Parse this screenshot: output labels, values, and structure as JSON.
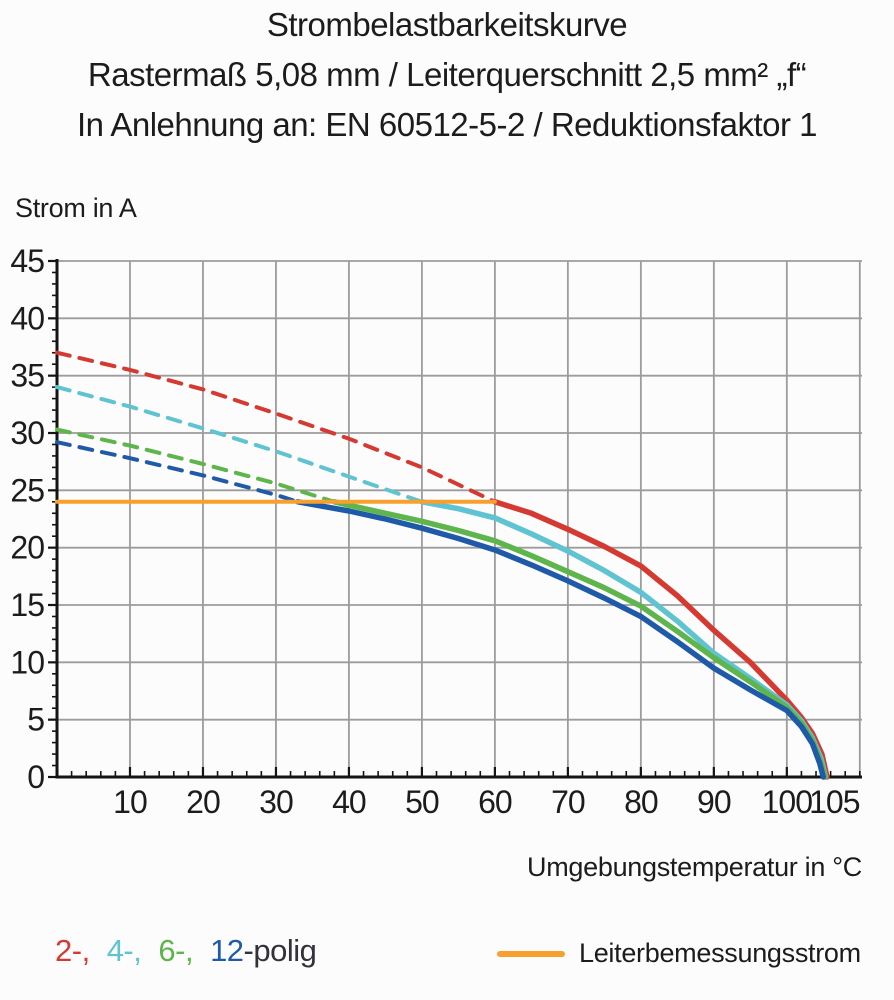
{
  "title": {
    "line1": "Strombelastbarkeitskurve",
    "line2": "Rastermaß 5,08 mm / Leiterquerschnitt 2,5 mm² „f“",
    "line3": "In Anlehnung an: EN 60512-5-2 / Reduktionsfaktor 1"
  },
  "colors": {
    "red": "#d53a32",
    "cyan": "#5fc3d2",
    "green": "#5db54b",
    "blue": "#1f5aa8",
    "orange": "#f7a02e",
    "grid": "#9c9c9c",
    "axis": "#141414",
    "text": "#1c1c1c"
  },
  "legend_left": {
    "items": [
      {
        "text": "2-,",
        "color": "#d53a32",
        "series": "2-polig"
      },
      {
        "text": "4-,",
        "color": "#5fc3d2",
        "series": "4-polig"
      },
      {
        "text": "6-,",
        "color": "#5db54b",
        "series": "6-polig"
      },
      {
        "text": "12",
        "color": "#1f5aa8",
        "series": "12-polig"
      }
    ],
    "suffix": "-polig"
  },
  "legend_right": {
    "swatch_color": "#f7a02e",
    "label": "Leiterbemessungsstrom"
  },
  "chart_data": {
    "type": "line",
    "title": "Strombelastbarkeitskurve",
    "xlabel": "Umgebungstemperatur in °C",
    "ylabel": "Strom in A",
    "xlim": [
      0,
      110.3
    ],
    "ylim": [
      0,
      45
    ],
    "grid": true,
    "x_major_step": 10,
    "x_minor_step": 2,
    "y_major_step": 5,
    "y_minor_step": 1,
    "x_ticks": [
      {
        "value": 10,
        "label": "10",
        "dx": 0
      },
      {
        "value": 20,
        "label": "20",
        "dx": 0
      },
      {
        "value": 30,
        "label": "30",
        "dx": 0
      },
      {
        "value": 40,
        "label": "40",
        "dx": 0
      },
      {
        "value": 50,
        "label": "50",
        "dx": 0
      },
      {
        "value": 60,
        "label": "60",
        "dx": 0
      },
      {
        "value": 70,
        "label": "70",
        "dx": 0
      },
      {
        "value": 80,
        "label": "80",
        "dx": 0
      },
      {
        "value": 90,
        "label": "90",
        "dx": 0
      },
      {
        "value": 100,
        "label": "100",
        "dx": 0
      },
      {
        "value": 105,
        "label": "105",
        "dx": 11
      }
    ],
    "y_ticks": [
      {
        "value": 0,
        "label": "0"
      },
      {
        "value": 5,
        "label": "5"
      },
      {
        "value": 10,
        "label": "10"
      },
      {
        "value": 15,
        "label": "15"
      },
      {
        "value": 20,
        "label": "20"
      },
      {
        "value": 25,
        "label": "25"
      },
      {
        "value": 30,
        "label": "30"
      },
      {
        "value": 35,
        "label": "35"
      },
      {
        "value": 40,
        "label": "40"
      },
      {
        "value": 45,
        "label": "45"
      }
    ],
    "rated_current_A": 24,
    "series": [
      {
        "name": "2-polig derating (dashed)",
        "color": "#d53a32",
        "style": "dashed",
        "width": 4,
        "points": [
          [
            0,
            37
          ],
          [
            10,
            35.5
          ],
          [
            20,
            33.8
          ],
          [
            30,
            31.7
          ],
          [
            40,
            29.5
          ],
          [
            50,
            27.0
          ],
          [
            60,
            24
          ]
        ]
      },
      {
        "name": "4-polig derating (dashed)",
        "color": "#5fc3d2",
        "style": "dashed",
        "width": 4,
        "points": [
          [
            0,
            34
          ],
          [
            10,
            32.3
          ],
          [
            20,
            30.4
          ],
          [
            30,
            28.4
          ],
          [
            40,
            26.2
          ],
          [
            50,
            24
          ]
        ]
      },
      {
        "name": "6-polig derating (dashed)",
        "color": "#5db54b",
        "style": "dashed",
        "width": 4,
        "points": [
          [
            0,
            30.3
          ],
          [
            10,
            28.9
          ],
          [
            20,
            27.3
          ],
          [
            30,
            25.6
          ],
          [
            38,
            24
          ]
        ]
      },
      {
        "name": "12-polig derating (dashed)",
        "color": "#1f5aa8",
        "style": "dashed",
        "width": 4,
        "points": [
          [
            0,
            29.2
          ],
          [
            10,
            27.8
          ],
          [
            20,
            26.3
          ],
          [
            30,
            24.6
          ],
          [
            33,
            24
          ]
        ]
      },
      {
        "name": "2-polig",
        "color": "#d53a32",
        "style": "solid",
        "width": 5.5,
        "points": [
          [
            60,
            24
          ],
          [
            65,
            23.0
          ],
          [
            70,
            21.6
          ],
          [
            75,
            20.1
          ],
          [
            80,
            18.4
          ],
          [
            85,
            15.8
          ],
          [
            90,
            12.8
          ],
          [
            95,
            10.0
          ],
          [
            100,
            6.7
          ],
          [
            102,
            5.2
          ],
          [
            103.5,
            3.8
          ],
          [
            104.8,
            2.0
          ],
          [
            105.5,
            0
          ]
        ]
      },
      {
        "name": "4-polig",
        "color": "#5fc3d2",
        "style": "solid",
        "width": 5.5,
        "points": [
          [
            50,
            24
          ],
          [
            55,
            23.4
          ],
          [
            60,
            22.6
          ],
          [
            65,
            21.2
          ],
          [
            70,
            19.7
          ],
          [
            75,
            18.0
          ],
          [
            80,
            16.1
          ],
          [
            85,
            13.6
          ],
          [
            90,
            10.8
          ],
          [
            95,
            8.6
          ],
          [
            100,
            6.3
          ],
          [
            102,
            4.9
          ],
          [
            103.5,
            3.4
          ],
          [
            104.7,
            1.6
          ],
          [
            105.3,
            0
          ]
        ]
      },
      {
        "name": "6-polig",
        "color": "#5db54b",
        "style": "solid",
        "width": 5.5,
        "points": [
          [
            38,
            24
          ],
          [
            40,
            23.7
          ],
          [
            45,
            23.0
          ],
          [
            50,
            22.3
          ],
          [
            55,
            21.5
          ],
          [
            60,
            20.6
          ],
          [
            65,
            19.3
          ],
          [
            70,
            17.9
          ],
          [
            75,
            16.5
          ],
          [
            80,
            14.9
          ],
          [
            85,
            12.7
          ],
          [
            90,
            10.4
          ],
          [
            95,
            8.3
          ],
          [
            100,
            6.1
          ],
          [
            102,
            4.7
          ],
          [
            103.5,
            3.2
          ],
          [
            104.6,
            1.4
          ],
          [
            105.2,
            0
          ]
        ]
      },
      {
        "name": "12-polig",
        "color": "#1f5aa8",
        "style": "solid",
        "width": 5.5,
        "points": [
          [
            33,
            24
          ],
          [
            40,
            23.2
          ],
          [
            45,
            22.5
          ],
          [
            50,
            21.7
          ],
          [
            55,
            20.8
          ],
          [
            60,
            19.8
          ],
          [
            65,
            18.5
          ],
          [
            70,
            17.1
          ],
          [
            75,
            15.6
          ],
          [
            80,
            14.0
          ],
          [
            85,
            11.8
          ],
          [
            90,
            9.5
          ],
          [
            95,
            7.6
          ],
          [
            100,
            5.8
          ],
          [
            102,
            4.4
          ],
          [
            103.5,
            2.9
          ],
          [
            104.5,
            1.2
          ],
          [
            105,
            0
          ]
        ]
      },
      {
        "name": "Leiterbemessungsstrom",
        "color": "#f7a02e",
        "style": "solid",
        "width": 4,
        "on_top": true,
        "points": [
          [
            0,
            24
          ],
          [
            60,
            24
          ]
        ]
      }
    ]
  }
}
